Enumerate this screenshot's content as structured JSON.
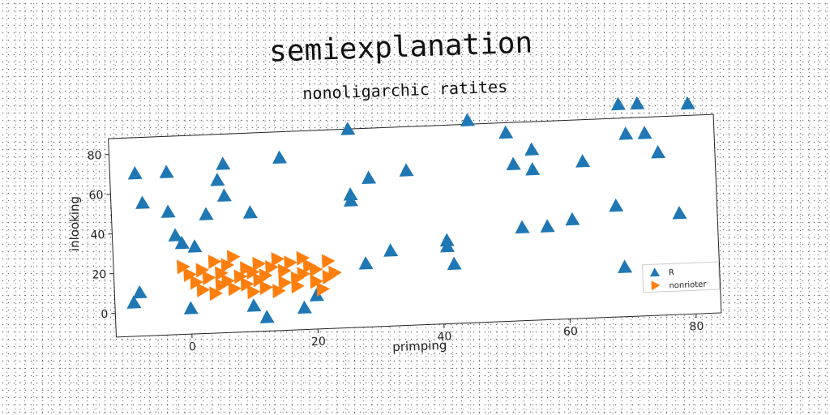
{
  "colors": {
    "series_a": "#1f77b4",
    "series_b": "#ff7f0e",
    "axes": "#222222"
  },
  "chart_data": {
    "type": "scatter",
    "title": "semiexplanation",
    "subtitle": "nonoligarchic ratites",
    "xlabel": "primping",
    "ylabel": "inlooking",
    "xlim": [
      -12,
      84
    ],
    "ylim": [
      -12,
      88
    ],
    "xticks": [
      0,
      20,
      40,
      60,
      80
    ],
    "yticks": [
      0,
      20,
      40,
      60,
      80
    ],
    "grid": false,
    "legend_position": "bottom-right",
    "series": [
      {
        "name": "R",
        "marker": "triangle-up",
        "color": "#1f77b4",
        "x": [
          -9,
          -8,
          -7,
          -8,
          -3,
          -3,
          -2,
          -1,
          1,
          0,
          3,
          5,
          6,
          6,
          10,
          15,
          10,
          12,
          18,
          20,
          26,
          26,
          26,
          29,
          28,
          32,
          35,
          41,
          41,
          42,
          45,
          51,
          52,
          53,
          55,
          55,
          57,
          61,
          63,
          68,
          69,
          70,
          69,
          72,
          73,
          75,
          78,
          80
        ],
        "y": [
          5,
          10,
          55,
          70,
          70,
          50,
          38,
          34,
          32,
          1,
          48,
          65,
          73,
          57,
          48,
          75,
          1,
          -5,
          -1,
          5,
          88,
          55,
          52,
          63,
          20,
          26,
          66,
          30,
          27,
          18,
          90,
          83,
          67,
          35,
          74,
          64,
          35,
          38,
          67,
          44,
          13,
          80,
          95,
          95,
          80,
          70,
          39,
          94
        ]
      },
      {
        "name": "nonrioter",
        "marker": "triangle-right",
        "color": "#ff7f0e",
        "x": [
          -1,
          0,
          1,
          2,
          2,
          3,
          4,
          4,
          5,
          5,
          6,
          6,
          7,
          7,
          8,
          9,
          9,
          10,
          10,
          11,
          11,
          12,
          12,
          13,
          14,
          14,
          15,
          15,
          16,
          17,
          17,
          18,
          18,
          19,
          20,
          20,
          21,
          22,
          22,
          23
        ],
        "y": [
          22,
          18,
          14,
          10,
          20,
          16,
          8,
          24,
          12,
          18,
          22,
          14,
          10,
          26,
          16,
          20,
          12,
          8,
          18,
          22,
          14,
          10,
          16,
          20,
          8,
          24,
          12,
          18,
          22,
          14,
          10,
          24,
          16,
          20,
          12,
          18,
          8,
          22,
          14,
          16
        ]
      }
    ]
  }
}
